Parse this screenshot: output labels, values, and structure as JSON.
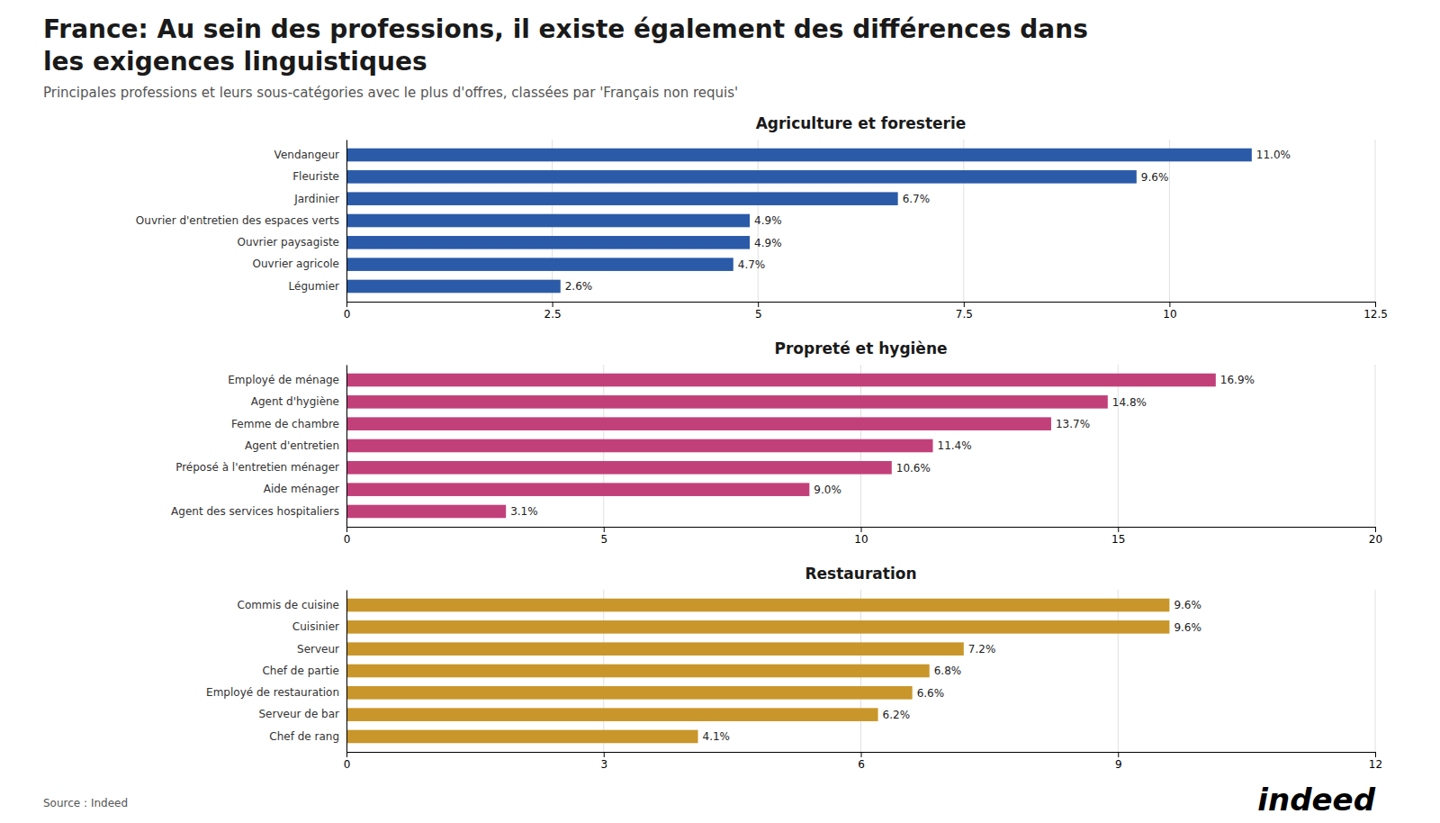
{
  "title": [
    "France: Au sein des professions, il existe également des différences dans",
    "les exigences linguistiques"
  ],
  "subtitle": "Principales professions et leurs sous-catégories avec le plus d'offres, classées par 'Français non requis'",
  "source": "Source : Indeed",
  "annotations": [
    "indeed"
  ],
  "chart_data": [
    {
      "type": "bar",
      "orientation": "horizontal",
      "title": "Agriculture et foresterie",
      "color": "#2B5BA8",
      "categories": [
        "Vendangeur",
        "Fleuriste",
        "Jardinier",
        "Ouvrier d'entretien des espaces verts",
        "Ouvrier paysagiste",
        "Ouvrier agricole",
        "Légumier"
      ],
      "values": [
        11.0,
        9.6,
        6.7,
        4.9,
        4.9,
        4.7,
        2.6
      ],
      "value_labels": [
        "11.0%",
        "9.6%",
        "6.7%",
        "4.9%",
        "4.9%",
        "4.7%",
        "2.6%"
      ],
      "data_labels": true,
      "xlim": [
        0,
        12.5
      ],
      "xticks": [
        0,
        2.5,
        5,
        7.5,
        10,
        12.5
      ],
      "grid": true
    },
    {
      "type": "bar",
      "orientation": "horizontal",
      "title": "Propreté et hygiène",
      "color": "#C2407A",
      "categories": [
        "Employé de ménage",
        "Agent d'hygiène",
        "Femme de chambre",
        "Agent d'entretien",
        "Préposé à l'entretien ménager",
        "Aide ménager",
        "Agent des services hospitaliers"
      ],
      "values": [
        16.9,
        14.8,
        13.7,
        11.4,
        10.6,
        9.0,
        3.1
      ],
      "value_labels": [
        "16.9%",
        "14.8%",
        "13.7%",
        "11.4%",
        "10.6%",
        "9.0%",
        "3.1%"
      ],
      "data_labels": true,
      "xlim": [
        0,
        20
      ],
      "xticks": [
        0,
        5,
        10,
        15,
        20
      ],
      "grid": true
    },
    {
      "type": "bar",
      "orientation": "horizontal",
      "title": "Restauration",
      "color": "#C8962A",
      "categories": [
        "Commis de cuisine",
        "Cuisinier",
        "Serveur",
        "Chef de partie",
        "Employé de restauration",
        "Serveur de bar",
        "Chef de rang"
      ],
      "values": [
        9.6,
        9.6,
        7.2,
        6.8,
        6.6,
        6.2,
        4.1
      ],
      "value_labels": [
        "9.6%",
        "9.6%",
        "7.2%",
        "6.8%",
        "6.6%",
        "6.2%",
        "4.1%"
      ],
      "data_labels": true,
      "xlim": [
        0,
        12
      ],
      "xticks": [
        0,
        3,
        6,
        9,
        12
      ],
      "grid": true
    }
  ]
}
